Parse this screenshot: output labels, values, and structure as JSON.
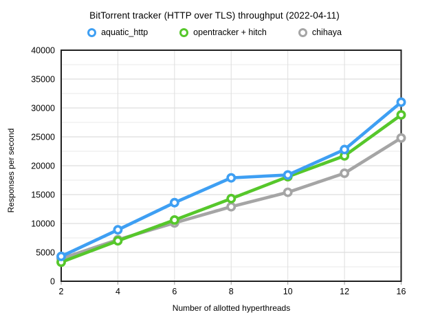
{
  "chart_data": {
    "type": "line",
    "title": "BitTorrent tracker (HTTP over TLS) throughput (2022-04-11)",
    "xlabel": "Number of allotted hyperthreads",
    "ylabel": "Responses per second",
    "categories": [
      "2",
      "4",
      "6",
      "8",
      "10",
      "12",
      "16"
    ],
    "ylim": [
      0,
      40000
    ],
    "y_major_step": 5000,
    "y_minor_step": 2500,
    "grid": true,
    "legend_position": "top",
    "marker_style": "donut",
    "series": [
      {
        "name": "aquatic_http",
        "color": "#3E9FF3",
        "values": [
          4300,
          8900,
          13600,
          17900,
          18400,
          22800,
          31000
        ]
      },
      {
        "name": "opentracker + hitch",
        "color": "#56C72B",
        "values": [
          3300,
          7000,
          10600,
          14300,
          18100,
          21700,
          28800
        ]
      },
      {
        "name": "chihaya",
        "color": "#A5A5A5",
        "values": [
          3900,
          7200,
          10100,
          12900,
          15400,
          18700,
          24800
        ]
      }
    ]
  }
}
